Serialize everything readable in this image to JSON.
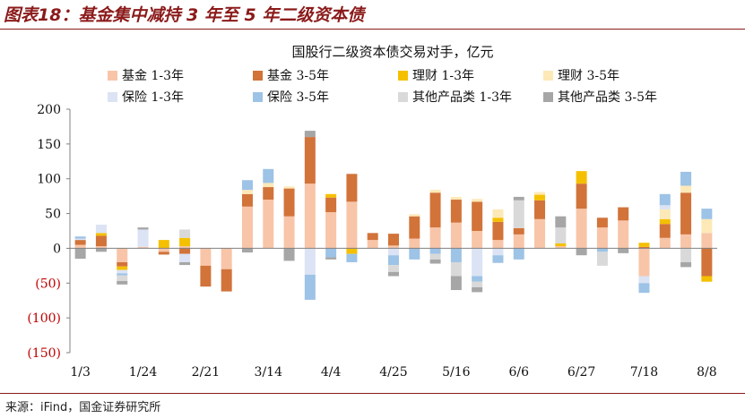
{
  "figure": {
    "title": "图表18：基金集中减持 3 年至 5 年二级资本债",
    "source": "来源：iFind，国金证券研究所"
  },
  "chart_data": {
    "type": "bar",
    "stacked": true,
    "title": "国股行二级资本债交易对手，亿元",
    "ylim": [
      -150,
      200
    ],
    "yticks": [
      200,
      150,
      100,
      50,
      0,
      -50,
      -100,
      -150
    ],
    "ytick_labels": [
      "200",
      "150",
      "100",
      "50",
      "0",
      "(50)",
      "(100)",
      "(150)"
    ],
    "negative_label_color": "#c00000",
    "grid": false,
    "legend_position": "top",
    "x_tick_labels": [
      {
        "index": 0,
        "label": "1/3"
      },
      {
        "index": 3,
        "label": "1/24"
      },
      {
        "index": 6,
        "label": "2/21"
      },
      {
        "index": 9,
        "label": "3/14"
      },
      {
        "index": 12,
        "label": "4/4"
      },
      {
        "index": 15,
        "label": "4/25"
      },
      {
        "index": 18,
        "label": "5/16"
      },
      {
        "index": 21,
        "label": "6/6"
      },
      {
        "index": 24,
        "label": "6/27"
      },
      {
        "index": 27,
        "label": "7/18"
      },
      {
        "index": 30,
        "label": "8/8"
      }
    ],
    "series": [
      {
        "name": "基金 1-3年",
        "color": "#f8c5a8",
        "values": [
          5,
          3,
          -20,
          2,
          -5,
          3,
          -25,
          -30,
          60,
          70,
          46,
          93,
          52,
          67,
          12,
          4,
          14,
          30,
          37,
          25,
          12,
          20,
          42,
          3,
          57,
          30,
          40,
          -40,
          15,
          20,
          22
        ]
      },
      {
        "name": "基金 3-5年",
        "color": "#d2733a",
        "values": [
          7,
          15,
          -6,
          0,
          -4,
          -8,
          -30,
          -32,
          18,
          18,
          40,
          67,
          21,
          40,
          10,
          17,
          32,
          50,
          33,
          42,
          26,
          9,
          27,
          0,
          36,
          14,
          19,
          2,
          20,
          60,
          -40
        ]
      },
      {
        "name": "理财 1-3年",
        "color": "#f5c000",
        "values": [
          0,
          4,
          -5,
          0,
          12,
          12,
          0,
          0,
          0,
          0,
          0,
          0,
          5,
          -8,
          0,
          0,
          0,
          0,
          0,
          0,
          6,
          0,
          8,
          4,
          18,
          0,
          0,
          6,
          7,
          0,
          -8
        ]
      },
      {
        "name": "理财 3-5年",
        "color": "#fde9b8",
        "values": [
          0,
          0,
          0,
          0,
          0,
          0,
          0,
          0,
          6,
          6,
          3,
          0,
          0,
          0,
          0,
          0,
          3,
          4,
          4,
          4,
          12,
          0,
          4,
          0,
          0,
          0,
          0,
          0,
          14,
          10,
          20
        ]
      },
      {
        "name": "保险 1-3年",
        "color": "#dbe3f4",
        "values": [
          2,
          12,
          -5,
          25,
          0,
          -12,
          0,
          0,
          0,
          0,
          0,
          -38,
          0,
          0,
          0,
          -10,
          0,
          0,
          0,
          -40,
          -10,
          0,
          0,
          0,
          0,
          0,
          0,
          -10,
          6,
          0,
          0
        ]
      },
      {
        "name": "保险 3-5年",
        "color": "#9dc3e6",
        "values": [
          3,
          0,
          -3,
          0,
          0,
          0,
          0,
          0,
          14,
          20,
          0,
          -36,
          -13,
          -12,
          0,
          -14,
          -16,
          -8,
          -20,
          -8,
          -11,
          -16,
          0,
          0,
          0,
          -5,
          0,
          -14,
          16,
          20,
          15
        ]
      },
      {
        "name": "其他产品类 1-3年",
        "color": "#d9d9d9",
        "values": [
          0,
          0,
          -8,
          0,
          0,
          12,
          0,
          0,
          0,
          0,
          0,
          0,
          0,
          0,
          0,
          -10,
          0,
          -8,
          -20,
          -8,
          0,
          40,
          0,
          23,
          0,
          -20,
          0,
          0,
          0,
          -20,
          0
        ]
      },
      {
        "name": "其他产品类 3-5年",
        "color": "#a6a6a6",
        "values": [
          -15,
          -5,
          -5,
          3,
          0,
          -4,
          0,
          0,
          -6,
          0,
          -18,
          9,
          -3,
          0,
          0,
          -6,
          0,
          -6,
          -20,
          -7,
          0,
          5,
          0,
          16,
          -10,
          0,
          -7,
          0,
          0,
          -7,
          0
        ]
      }
    ]
  }
}
